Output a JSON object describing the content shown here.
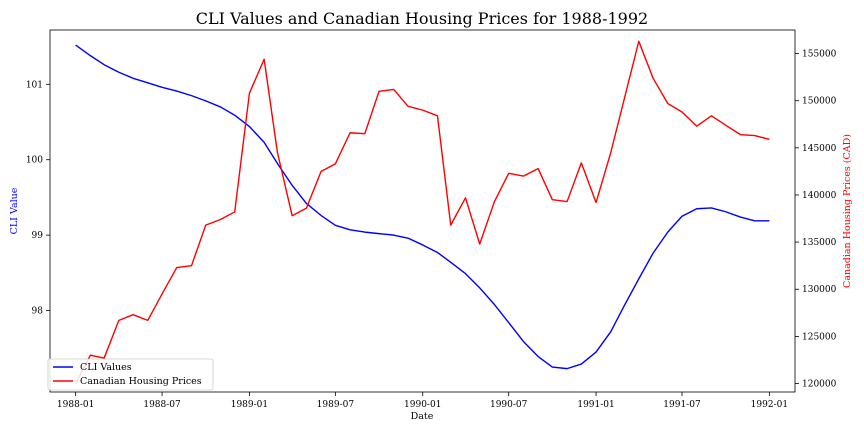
{
  "chart_data": {
    "type": "line",
    "title": "CLI Values and Canadian Housing Prices for 1988-1992",
    "xlabel": "Date",
    "ylabel_left": "CLI Value",
    "ylabel_right": "Canadian Housing Prices (CAD)",
    "colors": {
      "cli": "#0000ff",
      "housing": "#ff0000"
    },
    "x_ticks": [
      "1988-01",
      "1988-07",
      "1989-01",
      "1989-07",
      "1990-01",
      "1990-07",
      "1991-01",
      "1991-07",
      "1992-01"
    ],
    "y_left_ticks": [
      98,
      99,
      100,
      101
    ],
    "y_right_ticks": [
      120000,
      125000,
      130000,
      135000,
      140000,
      145000,
      150000,
      155000
    ],
    "y_right_tick_labels": [
      "120000",
      "125000",
      "130000",
      "135000",
      "140000",
      "145000",
      "150000",
      "155000"
    ],
    "xlim": [
      "1987-11-08",
      "1992-02-24"
    ],
    "ylim_left": [
      96.92,
      101.72
    ],
    "ylim_right": [
      119100,
      157500
    ],
    "legend": {
      "position": "lower-left",
      "entries": [
        "CLI Values",
        "Canadian Housing Prices"
      ]
    },
    "series": [
      {
        "name": "CLI Values",
        "axis": "left",
        "x": [
          "1988-01",
          "1988-02",
          "1988-03",
          "1988-04",
          "1988-05",
          "1988-06",
          "1988-07",
          "1988-08",
          "1988-09",
          "1988-10",
          "1988-11",
          "1988-12",
          "1989-01",
          "1989-02",
          "1989-03",
          "1989-04",
          "1989-05",
          "1989-06",
          "1989-07",
          "1989-08",
          "1989-09",
          "1989-10",
          "1989-11",
          "1989-12",
          "1990-01",
          "1990-02",
          "1990-03",
          "1990-04",
          "1990-05",
          "1990-06",
          "1990-07",
          "1990-08",
          "1990-09",
          "1990-10",
          "1990-11",
          "1990-12",
          "1991-01",
          "1991-02",
          "1991-03",
          "1991-04",
          "1991-05",
          "1991-06",
          "1991-07",
          "1991-08",
          "1991-09",
          "1991-10",
          "1991-11",
          "1991-12",
          "1992-01"
        ],
        "values": [
          101.52,
          101.38,
          101.26,
          101.16,
          101.08,
          101.02,
          100.96,
          100.91,
          100.85,
          100.78,
          100.7,
          100.59,
          100.44,
          100.23,
          99.95,
          99.66,
          99.42,
          99.26,
          99.13,
          99.07,
          99.04,
          99.02,
          99.0,
          98.96,
          98.87,
          98.77,
          98.64,
          98.49,
          98.3,
          98.08,
          97.84,
          97.59,
          97.39,
          97.25,
          97.23,
          97.29,
          97.45,
          97.72,
          98.06,
          98.42,
          98.76,
          99.04,
          99.25,
          99.35,
          99.36,
          99.31,
          99.24,
          99.19,
          99.19
        ]
      },
      {
        "name": "Canadian Housing Prices",
        "axis": "right",
        "x": [
          "1988-01",
          "1988-02",
          "1988-03",
          "1988-04",
          "1988-05",
          "1988-06",
          "1988-07",
          "1988-08",
          "1988-09",
          "1988-10",
          "1988-11",
          "1988-12",
          "1989-01",
          "1989-02",
          "1989-03",
          "1989-04",
          "1989-05",
          "1989-06",
          "1989-07",
          "1989-08",
          "1989-09",
          "1989-10",
          "1989-11",
          "1989-12",
          "1990-01",
          "1990-02",
          "1990-03",
          "1990-04",
          "1990-05",
          "1990-06",
          "1990-07",
          "1990-08",
          "1990-09",
          "1990-10",
          "1990-11",
          "1990-12",
          "1991-01",
          "1991-02",
          "1991-03",
          "1991-04",
          "1991-05",
          "1991-06",
          "1991-07",
          "1991-08",
          "1991-09",
          "1991-10",
          "1991-11",
          "1991-12",
          "1992-01"
        ],
        "values": [
          120000,
          123000,
          122700,
          126700,
          127300,
          126700,
          129500,
          132300,
          132500,
          136800,
          137400,
          138200,
          150800,
          154400,
          144500,
          137800,
          138600,
          142500,
          143300,
          146600,
          146500,
          151000,
          151200,
          149400,
          149000,
          148400,
          136800,
          139700,
          134800,
          139300,
          142300,
          142000,
          142800,
          139500,
          139300,
          143400,
          139200,
          144500,
          150100,
          156300,
          152400,
          149700,
          148800,
          147300,
          148400,
          147400,
          146400,
          146300,
          145900
        ]
      }
    ]
  }
}
